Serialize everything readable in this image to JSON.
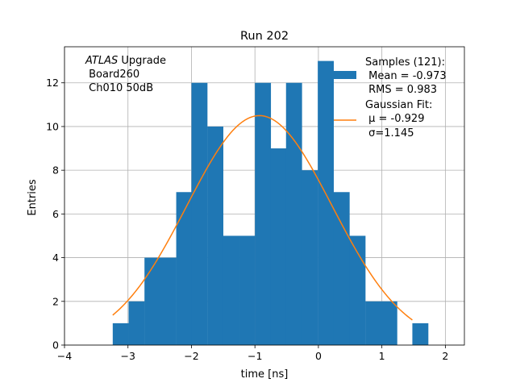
{
  "chart_data": {
    "type": "bar",
    "title": "Run 202",
    "xlabel": "time [ns]",
    "ylabel": "Entries",
    "xlim": [
      -4,
      2.3
    ],
    "ylim": [
      0,
      13.65
    ],
    "xticks": [
      -4,
      -3,
      -2,
      -1,
      0,
      1,
      2
    ],
    "xtick_labels": [
      "−4",
      "−3",
      "−2",
      "−1",
      "0",
      "1",
      "2"
    ],
    "yticks": [
      0,
      2,
      4,
      6,
      8,
      10,
      12
    ],
    "ytick_labels": [
      "0",
      "2",
      "4",
      "6",
      "8",
      "10",
      "12"
    ],
    "grid": true,
    "legend_position": "upper right",
    "bin_width": 0.2485,
    "bins": [
      {
        "x0": -3.24,
        "count": 1
      },
      {
        "x0": -2.99,
        "count": 2
      },
      {
        "x0": -2.74,
        "count": 4
      },
      {
        "x0": -2.49,
        "count": 4
      },
      {
        "x0": -2.24,
        "count": 7
      },
      {
        "x0": -2.0,
        "count": 12
      },
      {
        "x0": -1.75,
        "count": 10
      },
      {
        "x0": -1.5,
        "count": 5
      },
      {
        "x0": -1.25,
        "count": 5
      },
      {
        "x0": -1.0,
        "count": 12
      },
      {
        "x0": -0.75,
        "count": 9
      },
      {
        "x0": -0.51,
        "count": 12
      },
      {
        "x0": -0.26,
        "count": 8
      },
      {
        "x0": -0.01,
        "count": 13
      },
      {
        "x0": 0.24,
        "count": 7
      },
      {
        "x0": 0.49,
        "count": 5
      },
      {
        "x0": 0.74,
        "count": 2
      },
      {
        "x0": 0.99,
        "count": 2
      },
      {
        "x0": 1.24,
        "count": 0
      },
      {
        "x0": 1.48,
        "count": 1
      }
    ],
    "series": [
      {
        "name": "Samples (121):\n Mean = -0.973\n RMS = 0.983",
        "color": "#1f77b4"
      },
      {
        "name": "Gaussian Fit:\n μ = -0.929\n σ=1.145",
        "color": "#ff7f0e",
        "mu": -0.929,
        "sigma": 1.145,
        "amplitude": 10.5,
        "x_range": [
          -3.24,
          1.48
        ]
      }
    ],
    "legend": {
      "samples_lines": [
        "Samples (121):",
        " Mean = -0.973",
        " RMS = 0.983"
      ],
      "fit_lines": [
        "Gaussian Fit:",
        " μ = -0.929",
        " σ=1.145"
      ]
    },
    "annotation_lines": [
      "ATLAS Upgrade",
      " Board260",
      " Ch010 50dB"
    ]
  }
}
